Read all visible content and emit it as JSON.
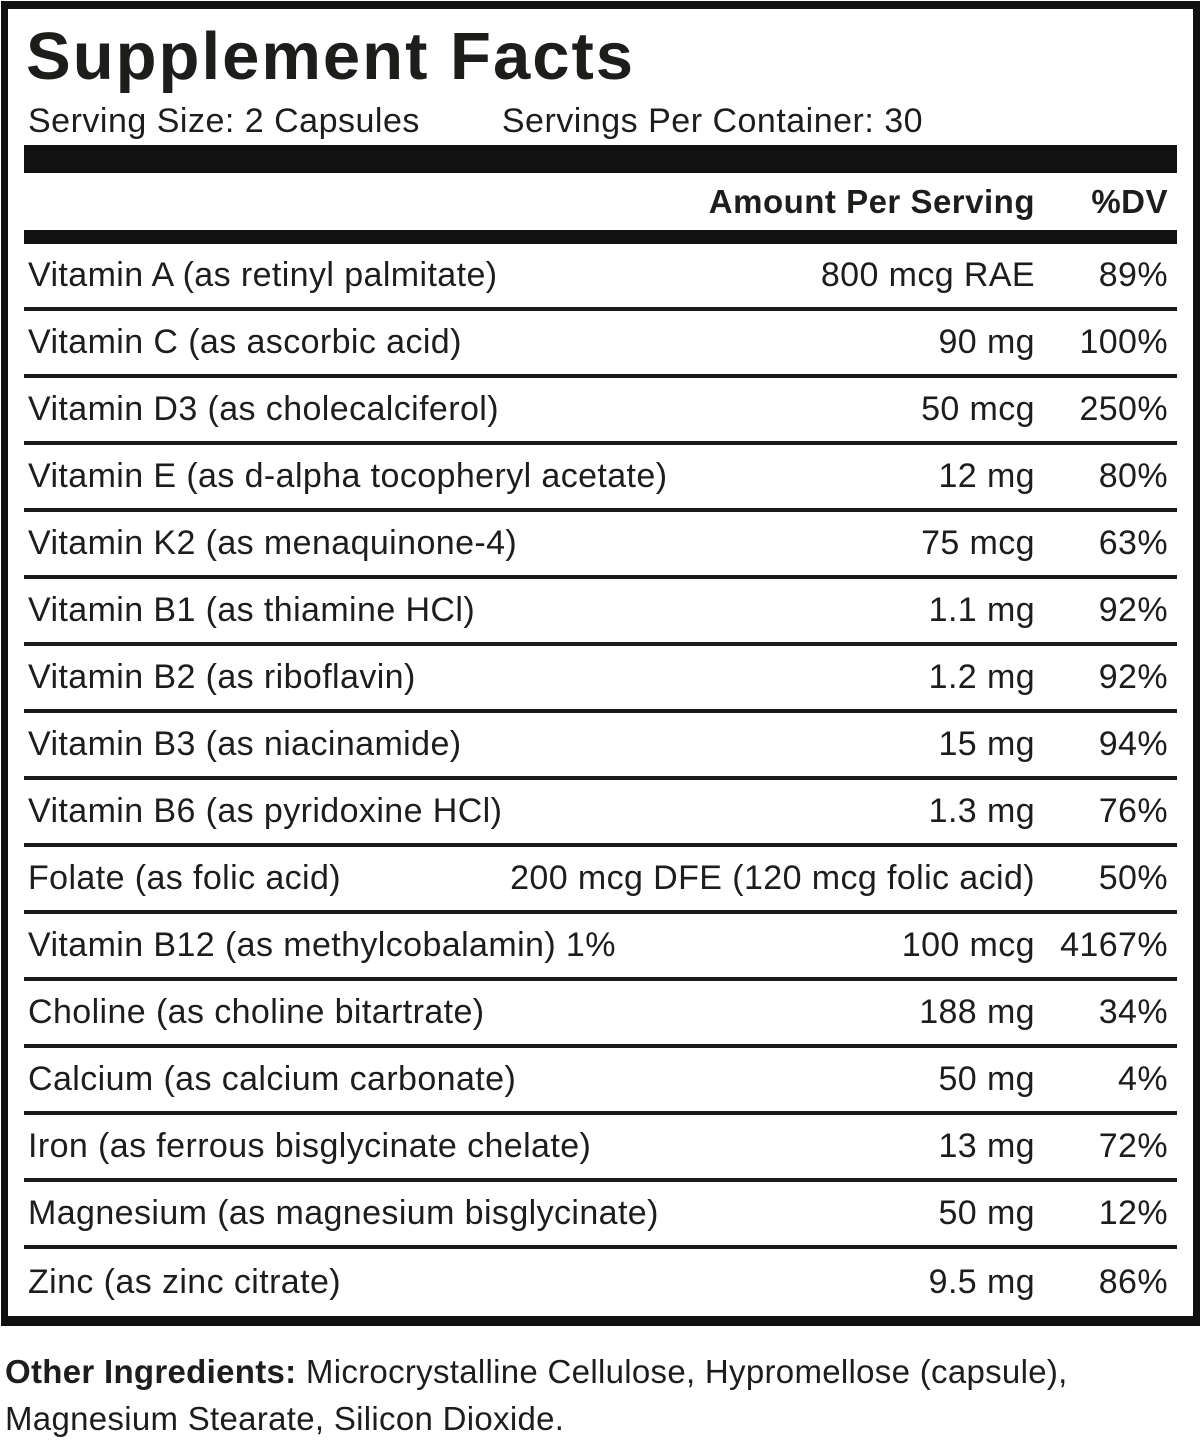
{
  "label": {
    "title": "Supplement Facts",
    "serving_size": "Serving Size: 2 Capsules",
    "servings_per_container": "Servings Per Container: 30",
    "header": {
      "amount": "Amount Per Serving",
      "dv": "%DV"
    },
    "rows": [
      {
        "name": "Vitamin A (as retinyl palmitate)",
        "amount": "800 mcg RAE",
        "dv": "89%"
      },
      {
        "name": "Vitamin C (as ascorbic acid)",
        "amount": "90 mg",
        "dv": "100%"
      },
      {
        "name": "Vitamin D3 (as cholecalciferol)",
        "amount": "50 mcg",
        "dv": "250%"
      },
      {
        "name": "Vitamin E (as d-alpha tocopheryl acetate)",
        "amount": "12 mg",
        "dv": "80%"
      },
      {
        "name": "Vitamin K2 (as menaquinone-4)",
        "amount": "75 mcg",
        "dv": "63%"
      },
      {
        "name": "Vitamin B1 (as thiamine HCl)",
        "amount": "1.1 mg",
        "dv": "92%"
      },
      {
        "name": "Vitamin B2 (as riboflavin)",
        "amount": "1.2 mg",
        "dv": "92%"
      },
      {
        "name": "Vitamin B3 (as niacinamide)",
        "amount": "15 mg",
        "dv": "94%"
      },
      {
        "name": "Vitamin B6 (as pyridoxine HCl)",
        "amount": "1.3 mg",
        "dv": "76%"
      },
      {
        "name": "Folate (as folic acid)",
        "amount": "200 mcg DFE (120 mcg folic acid)",
        "dv": "50%"
      },
      {
        "name": "Vitamin B12 (as methylcobalamin) 1%",
        "amount": "100 mcg",
        "dv": "4167%"
      },
      {
        "name": "Choline (as choline bitartrate)",
        "amount": "188 mg",
        "dv": "34%"
      },
      {
        "name": "Calcium (as calcium carbonate)",
        "amount": "50 mg",
        "dv": "4%"
      },
      {
        "name": "Iron (as ferrous bisglycinate chelate)",
        "amount": "13 mg",
        "dv": "72%"
      },
      {
        "name": "Magnesium (as magnesium bisglycinate)",
        "amount": "50 mg",
        "dv": "12%"
      },
      {
        "name": "Zinc (as zinc citrate)",
        "amount": "9.5 mg",
        "dv": "86%"
      }
    ],
    "other_ingredients": {
      "label": "Other Ingredients:",
      "text": "Microcrystalline Cellulose, Hypromellose (capsule), Magnesium Stearate, Silicon Dioxide."
    },
    "colors": {
      "text": "#1d1d1b",
      "bar": "#111111",
      "background": "#ffffff"
    }
  }
}
